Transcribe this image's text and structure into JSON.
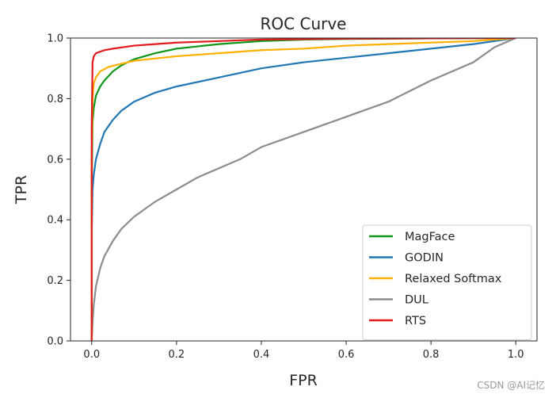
{
  "chart_data": {
    "type": "line",
    "title": "ROC Curve",
    "xlabel": "FPR",
    "ylabel": "TPR",
    "xlim": [
      -0.05,
      1.05
    ],
    "ylim": [
      0.0,
      1.0
    ],
    "xticks": [
      0.0,
      0.2,
      0.4,
      0.6,
      0.8,
      1.0
    ],
    "yticks": [
      0.0,
      0.2,
      0.4,
      0.6,
      0.8,
      1.0
    ],
    "xtick_labels": [
      "0.0",
      "0.2",
      "0.4",
      "0.6",
      "0.8",
      "1.0"
    ],
    "ytick_labels": [
      "0.0",
      "0.2",
      "0.4",
      "0.6",
      "0.8",
      "1.0"
    ],
    "grid": false,
    "legend_position": "lower-right",
    "series": [
      {
        "name": "MagFace",
        "color": "#109618",
        "x": [
          0.0,
          0.0,
          0.002,
          0.005,
          0.01,
          0.02,
          0.03,
          0.05,
          0.07,
          0.1,
          0.15,
          0.2,
          0.3,
          0.4,
          0.5,
          0.6,
          0.8,
          1.0
        ],
        "y": [
          0.0,
          0.5,
          0.72,
          0.77,
          0.81,
          0.84,
          0.86,
          0.89,
          0.91,
          0.93,
          0.95,
          0.965,
          0.98,
          0.99,
          0.995,
          0.997,
          0.999,
          1.0
        ]
      },
      {
        "name": "GODIN",
        "color": "#1f77b4",
        "x": [
          0.0,
          0.0,
          0.002,
          0.005,
          0.01,
          0.02,
          0.03,
          0.04,
          0.05,
          0.07,
          0.1,
          0.15,
          0.2,
          0.3,
          0.4,
          0.5,
          0.6,
          0.7,
          0.8,
          0.9,
          0.95,
          1.0
        ],
        "y": [
          0.0,
          0.35,
          0.5,
          0.55,
          0.6,
          0.65,
          0.69,
          0.71,
          0.73,
          0.76,
          0.79,
          0.82,
          0.84,
          0.87,
          0.9,
          0.92,
          0.935,
          0.95,
          0.965,
          0.98,
          0.99,
          1.0
        ]
      },
      {
        "name": "Relaxed Softmax",
        "color": "#ffb000",
        "x": [
          0.0,
          0.0,
          0.002,
          0.005,
          0.01,
          0.02,
          0.04,
          0.07,
          0.1,
          0.2,
          0.3,
          0.4,
          0.5,
          0.6,
          0.7,
          0.8,
          0.9,
          1.0
        ],
        "y": [
          0.0,
          0.6,
          0.8,
          0.85,
          0.87,
          0.89,
          0.905,
          0.915,
          0.925,
          0.94,
          0.95,
          0.96,
          0.965,
          0.975,
          0.98,
          0.985,
          0.99,
          1.0
        ]
      },
      {
        "name": "DUL",
        "color": "#8c8c8c",
        "x": [
          0.0,
          0.002,
          0.005,
          0.01,
          0.02,
          0.03,
          0.05,
          0.07,
          0.1,
          0.15,
          0.2,
          0.25,
          0.3,
          0.35,
          0.4,
          0.5,
          0.6,
          0.7,
          0.8,
          0.9,
          0.95,
          1.0
        ],
        "y": [
          0.0,
          0.06,
          0.12,
          0.18,
          0.24,
          0.28,
          0.33,
          0.37,
          0.41,
          0.46,
          0.5,
          0.54,
          0.57,
          0.6,
          0.64,
          0.69,
          0.74,
          0.79,
          0.86,
          0.92,
          0.97,
          1.0
        ]
      },
      {
        "name": "RTS",
        "color": "#e31a1c",
        "x": [
          0.0,
          0.0,
          0.002,
          0.005,
          0.01,
          0.02,
          0.03,
          0.05,
          0.1,
          0.15,
          0.2,
          0.3,
          0.4,
          0.6,
          0.8,
          1.0
        ],
        "y": [
          0.0,
          0.7,
          0.92,
          0.94,
          0.95,
          0.955,
          0.96,
          0.965,
          0.975,
          0.98,
          0.985,
          0.99,
          0.995,
          0.998,
          0.999,
          1.0
        ]
      }
    ]
  },
  "watermark": "CSDN @AI记忆"
}
